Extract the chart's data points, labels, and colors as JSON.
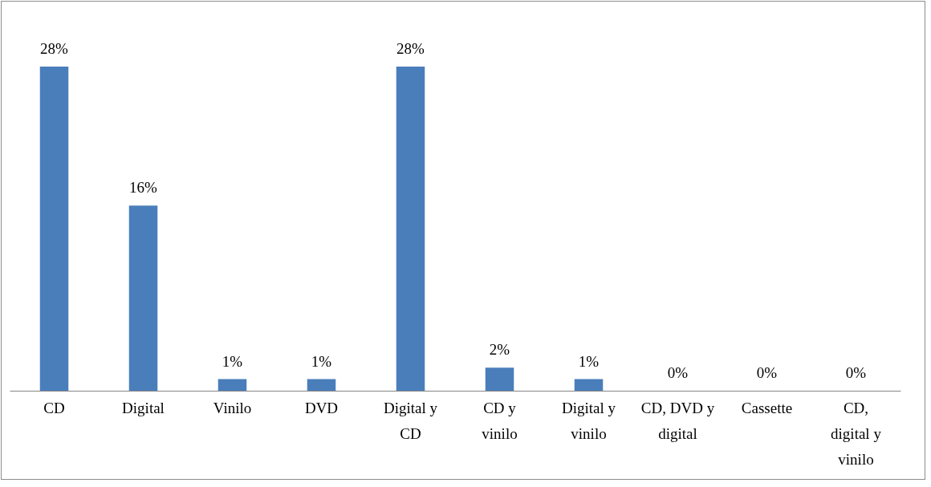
{
  "chart_data": {
    "type": "bar",
    "categories": [
      "CD",
      "Digital",
      "Vinilo",
      "DVD",
      "Digital y CD",
      "CD y vinilo",
      "Digital y vinilo",
      "CD, DVD y digital",
      "Cassette",
      "CD, digital y vinilo"
    ],
    "values": [
      28,
      16,
      1,
      1,
      28,
      2,
      1,
      0,
      0,
      0
    ],
    "value_labels": [
      "28%",
      "16%",
      "1%",
      "1%",
      "28%",
      "2%",
      "1%",
      "0%",
      "0%",
      "0%"
    ],
    "color": "#4a7ebb"
  }
}
